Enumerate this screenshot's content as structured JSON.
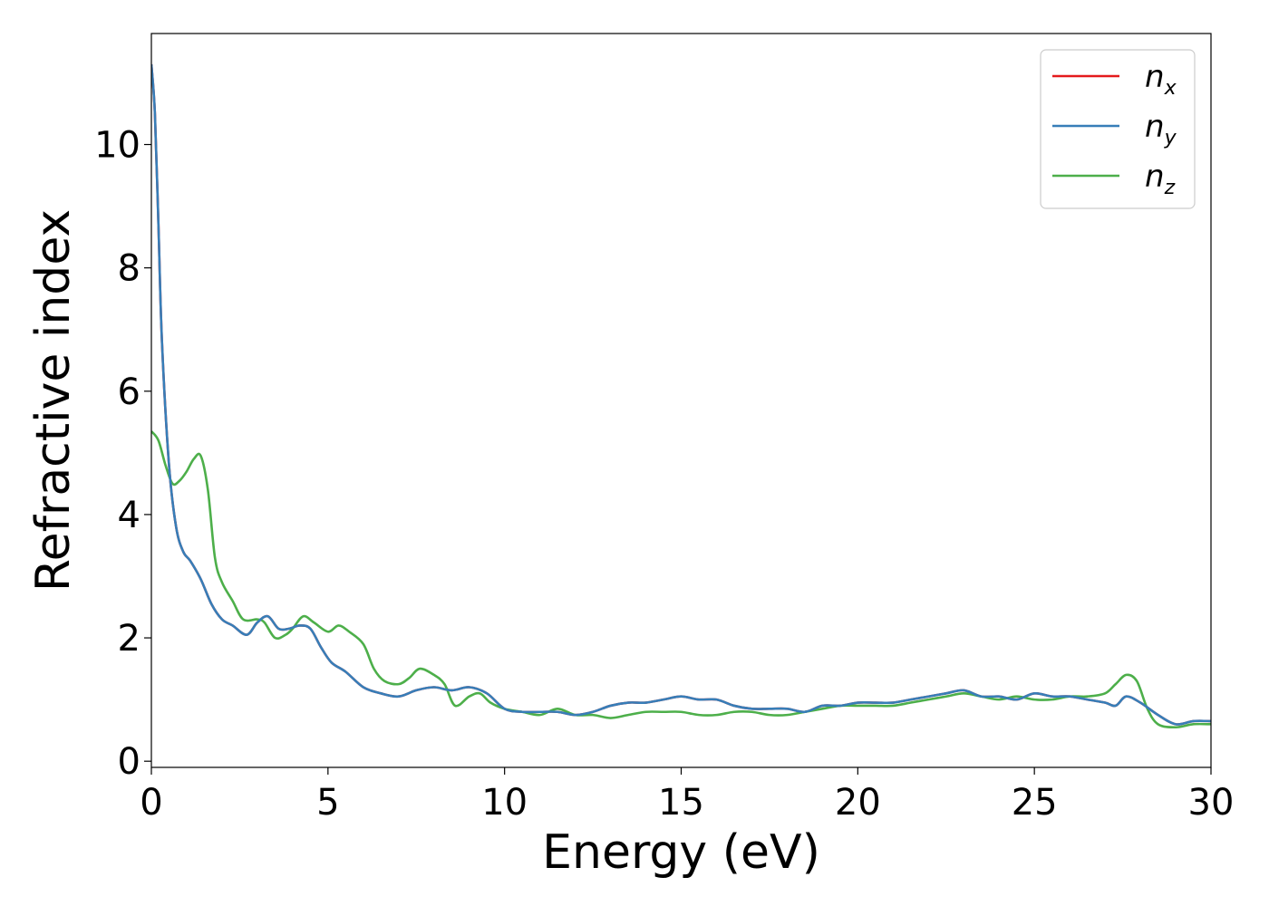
{
  "chart_data": {
    "type": "line",
    "title": "",
    "xlabel": "Energy (eV)",
    "ylabel": "Refractive index",
    "xlim": [
      0,
      30
    ],
    "ylim": [
      -0.1,
      11.8
    ],
    "xticks": [
      0,
      5,
      10,
      15,
      20,
      25,
      30
    ],
    "yticks": [
      0,
      2,
      4,
      6,
      8,
      10
    ],
    "grid": false,
    "legend_position": "top-right",
    "series": [
      {
        "name": "n",
        "subscript": "x",
        "color": "#e41a1c",
        "x": [
          0.0,
          0.1,
          0.2,
          0.3,
          0.5,
          0.7,
          0.9,
          1.1,
          1.4,
          1.7,
          2.0,
          2.3,
          2.7,
          3.0,
          3.3,
          3.6,
          3.9,
          4.2,
          4.5,
          4.8,
          5.1,
          5.5,
          6.0,
          6.5,
          7.0,
          7.5,
          8.0,
          8.5,
          9.0,
          9.5,
          10.0,
          10.5,
          11.0,
          11.5,
          12.0,
          12.5,
          13.0,
          13.5,
          14.0,
          14.5,
          15.0,
          15.5,
          16.0,
          16.5,
          17.0,
          17.5,
          18.0,
          18.5,
          19.0,
          19.5,
          20.0,
          20.5,
          21.0,
          21.5,
          22.0,
          22.5,
          23.0,
          23.5,
          24.0,
          24.5,
          25.0,
          25.5,
          26.0,
          26.5,
          27.0,
          27.3,
          27.6,
          28.0,
          28.5,
          29.0,
          29.5,
          30.0
        ],
        "y": [
          11.3,
          10.5,
          8.7,
          6.8,
          4.8,
          3.8,
          3.4,
          3.25,
          2.95,
          2.55,
          2.3,
          2.2,
          2.05,
          2.25,
          2.35,
          2.15,
          2.15,
          2.2,
          2.15,
          1.85,
          1.6,
          1.45,
          1.2,
          1.1,
          1.05,
          1.15,
          1.2,
          1.15,
          1.2,
          1.1,
          0.85,
          0.8,
          0.8,
          0.8,
          0.75,
          0.8,
          0.9,
          0.95,
          0.95,
          1.0,
          1.05,
          1.0,
          1.0,
          0.9,
          0.85,
          0.85,
          0.85,
          0.8,
          0.9,
          0.9,
          0.95,
          0.95,
          0.95,
          1.0,
          1.05,
          1.1,
          1.15,
          1.05,
          1.05,
          1.0,
          1.1,
          1.05,
          1.05,
          1.0,
          0.95,
          0.9,
          1.05,
          0.95,
          0.75,
          0.6,
          0.65,
          0.65
        ]
      },
      {
        "name": "n",
        "subscript": "y",
        "color": "#377eb8",
        "x": [
          0.0,
          0.1,
          0.2,
          0.3,
          0.5,
          0.7,
          0.9,
          1.1,
          1.4,
          1.7,
          2.0,
          2.3,
          2.7,
          3.0,
          3.3,
          3.6,
          3.9,
          4.2,
          4.5,
          4.8,
          5.1,
          5.5,
          6.0,
          6.5,
          7.0,
          7.5,
          8.0,
          8.5,
          9.0,
          9.5,
          10.0,
          10.5,
          11.0,
          11.5,
          12.0,
          12.5,
          13.0,
          13.5,
          14.0,
          14.5,
          15.0,
          15.5,
          16.0,
          16.5,
          17.0,
          17.5,
          18.0,
          18.5,
          19.0,
          19.5,
          20.0,
          20.5,
          21.0,
          21.5,
          22.0,
          22.5,
          23.0,
          23.5,
          24.0,
          24.5,
          25.0,
          25.5,
          26.0,
          26.5,
          27.0,
          27.3,
          27.6,
          28.0,
          28.5,
          29.0,
          29.5,
          30.0
        ],
        "y": [
          11.3,
          10.5,
          8.7,
          6.8,
          4.8,
          3.8,
          3.4,
          3.25,
          2.95,
          2.55,
          2.3,
          2.2,
          2.05,
          2.25,
          2.35,
          2.15,
          2.15,
          2.2,
          2.15,
          1.85,
          1.6,
          1.45,
          1.2,
          1.1,
          1.05,
          1.15,
          1.2,
          1.15,
          1.2,
          1.1,
          0.85,
          0.8,
          0.8,
          0.8,
          0.75,
          0.8,
          0.9,
          0.95,
          0.95,
          1.0,
          1.05,
          1.0,
          1.0,
          0.9,
          0.85,
          0.85,
          0.85,
          0.8,
          0.9,
          0.9,
          0.95,
          0.95,
          0.95,
          1.0,
          1.05,
          1.1,
          1.15,
          1.05,
          1.05,
          1.0,
          1.1,
          1.05,
          1.05,
          1.0,
          0.95,
          0.9,
          1.05,
          0.95,
          0.75,
          0.6,
          0.65,
          0.65
        ]
      },
      {
        "name": "n",
        "subscript": "z",
        "color": "#4daf4a",
        "x": [
          0.0,
          0.2,
          0.4,
          0.6,
          0.8,
          1.0,
          1.2,
          1.4,
          1.6,
          1.8,
          2.0,
          2.3,
          2.6,
          3.0,
          3.2,
          3.5,
          3.8,
          4.0,
          4.3,
          4.6,
          5.0,
          5.3,
          5.6,
          6.0,
          6.3,
          6.6,
          7.0,
          7.3,
          7.6,
          8.0,
          8.3,
          8.6,
          9.0,
          9.3,
          9.6,
          10.0,
          10.5,
          11.0,
          11.5,
          12.0,
          12.5,
          13.0,
          13.5,
          14.0,
          14.5,
          15.0,
          15.5,
          16.0,
          16.5,
          17.0,
          17.5,
          18.0,
          18.5,
          19.0,
          19.5,
          20.0,
          20.5,
          21.0,
          21.5,
          22.0,
          22.5,
          23.0,
          23.5,
          24.0,
          24.5,
          25.0,
          25.5,
          26.0,
          26.5,
          27.0,
          27.3,
          27.6,
          27.9,
          28.2,
          28.5,
          29.0,
          29.5,
          30.0
        ],
        "y": [
          5.35,
          5.2,
          4.8,
          4.5,
          4.55,
          4.7,
          4.9,
          4.95,
          4.4,
          3.3,
          2.9,
          2.6,
          2.3,
          2.3,
          2.25,
          2.0,
          2.05,
          2.15,
          2.35,
          2.25,
          2.1,
          2.2,
          2.1,
          1.9,
          1.5,
          1.3,
          1.25,
          1.35,
          1.5,
          1.4,
          1.25,
          0.9,
          1.05,
          1.1,
          0.95,
          0.85,
          0.8,
          0.75,
          0.85,
          0.75,
          0.75,
          0.7,
          0.75,
          0.8,
          0.8,
          0.8,
          0.75,
          0.75,
          0.8,
          0.8,
          0.75,
          0.75,
          0.8,
          0.85,
          0.9,
          0.9,
          0.9,
          0.9,
          0.95,
          1.0,
          1.05,
          1.1,
          1.05,
          1.0,
          1.05,
          1.0,
          1.0,
          1.05,
          1.05,
          1.1,
          1.25,
          1.4,
          1.3,
          0.85,
          0.6,
          0.55,
          0.6,
          0.6
        ]
      }
    ]
  }
}
